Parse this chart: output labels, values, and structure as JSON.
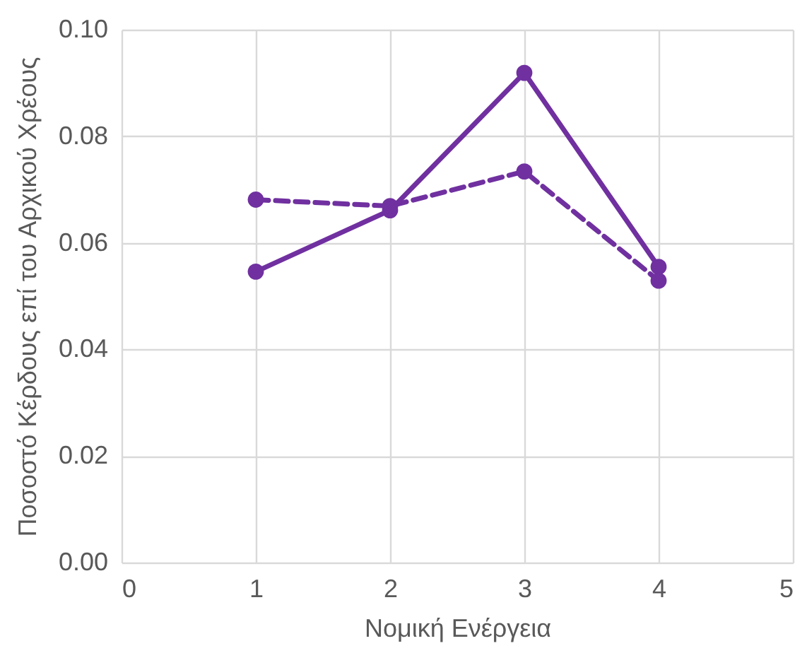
{
  "chart_data": {
    "type": "line",
    "xlabel": "Νομική Ενέργεια",
    "ylabel": "Ποσοστό Κέρδους επί του Αρχικού Χρέους",
    "x": [
      1,
      2,
      3,
      4
    ],
    "series": [
      {
        "color": "#7030a0",
        "values": [
          0.0546,
          0.0661,
          0.0919,
          0.0555
        ],
        "line_style": "solid"
      },
      {
        "color": "#7030a0",
        "values": [
          0.0681,
          0.0669,
          0.0734,
          0.0529
        ],
        "line_style": "dashed"
      }
    ],
    "xlim": [
      0,
      5
    ],
    "xticks": [
      0,
      1,
      2,
      3,
      4,
      5
    ],
    "ylim": [
      0,
      0.1
    ],
    "yticks": [
      {
        "value": 0,
        "label": "0.00"
      },
      {
        "value": 0.02,
        "label": "0.02"
      },
      {
        "value": 0.04,
        "label": "0.04"
      },
      {
        "value": 0.06,
        "label": "0.06"
      },
      {
        "value": 0.08,
        "label": "0.08"
      },
      {
        "value": 0.1,
        "label": "0.10"
      }
    ],
    "grid": true,
    "marker": "circle",
    "legend": false
  }
}
